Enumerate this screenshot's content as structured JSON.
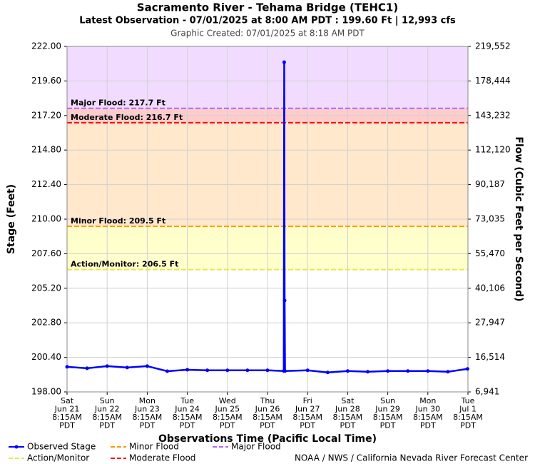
{
  "chart_data": {
    "type": "line",
    "title": "Sacramento River - Tehama Bridge (TEHC1)",
    "subtitle": "Latest Observation - 07/01/2025 at 8:00 AM PDT : 199.60 Ft | 12,993 cfs",
    "created": "Graphic Created: 07/01/2025 at 8:18 AM PDT",
    "xlabel": "Observations Time (Pacific Local Time)",
    "ylabel": "Stage (Feet)",
    "y2label": "Flow (Cubic Feet per Second)",
    "footer": "NOAA / NWS / California Nevada River Forecast Center",
    "grid": true,
    "ylim": [
      198,
      222
    ],
    "yticks": [
      {
        "value": 198,
        "label": "198.00"
      },
      {
        "value": 200.4,
        "label": "200.40"
      },
      {
        "value": 202.8,
        "label": "202.80"
      },
      {
        "value": 205.2,
        "label": "205.20"
      },
      {
        "value": 207.6,
        "label": "207.60"
      },
      {
        "value": 210,
        "label": "210.00"
      },
      {
        "value": 212.4,
        "label": "212.40"
      },
      {
        "value": 214.8,
        "label": "214.80"
      },
      {
        "value": 217.2,
        "label": "217.20"
      },
      {
        "value": 219.6,
        "label": "219.60"
      },
      {
        "value": 222,
        "label": "222.00"
      }
    ],
    "y2ticks": [
      {
        "value": 6941,
        "label": "6,941"
      },
      {
        "value": 16514,
        "label": "16,514"
      },
      {
        "value": 27947,
        "label": "27,947"
      },
      {
        "value": 40106,
        "label": "40,106"
      },
      {
        "value": 55470,
        "label": "55,470"
      },
      {
        "value": 73035,
        "label": "73,035"
      },
      {
        "value": 90187,
        "label": "90,187"
      },
      {
        "value": 112120,
        "label": "112,120"
      },
      {
        "value": 143232,
        "label": "143,232"
      },
      {
        "value": 178444,
        "label": "178,444"
      },
      {
        "value": 219552,
        "label": "219,552"
      }
    ],
    "xlim": [
      "Jun 21 8:15AM",
      "Jul 1 8:15AM"
    ],
    "xticks": [
      {
        "value": "Jun 21 8:15AM",
        "label": [
          "Sat",
          "Jun 21",
          "8:15AM",
          "PDT"
        ]
      },
      {
        "value": "Jun 22 8:15AM",
        "label": [
          "Sun",
          "Jun 22",
          "8:15AM",
          "PDT"
        ]
      },
      {
        "value": "Jun 23 8:15AM",
        "label": [
          "Mon",
          "Jun 23",
          "8:15AM",
          "PDT"
        ]
      },
      {
        "value": "Jun 24 8:15AM",
        "label": [
          "Tue",
          "Jun 24",
          "8:15AM",
          "PDT"
        ]
      },
      {
        "value": "Jun 25 8:15AM",
        "label": [
          "Wed",
          "Jun 25",
          "8:15AM",
          "PDT"
        ]
      },
      {
        "value": "Jun 26 8:15AM",
        "label": [
          "Thu",
          "Jun 26",
          "8:15AM",
          "PDT"
        ]
      },
      {
        "value": "Jun 27 8:15AM",
        "label": [
          "Fri",
          "Jun 27",
          "8:15AM",
          "PDT"
        ]
      },
      {
        "value": "Jun 28 8:15AM",
        "label": [
          "Sat",
          "Jun 28",
          "8:15AM",
          "PDT"
        ]
      },
      {
        "value": "Jun 29 8:15AM",
        "label": [
          "Sun",
          "Jun 29",
          "8:15AM",
          "PDT"
        ]
      },
      {
        "value": "Jun 30 8:15AM",
        "label": [
          "Mon",
          "Jun 30",
          "8:15AM",
          "PDT"
        ]
      },
      {
        "value": "Jul 1 8:15AM",
        "label": [
          "Tue",
          "Jul 1",
          "8:15AM",
          "PDT"
        ]
      }
    ],
    "series": [
      {
        "name": "Observed Stage",
        "color": "#0000ff",
        "x": [
          "Jun 21 8:15AM",
          "Jun 21 8:15PM",
          "Jun 22 8:15AM",
          "Jun 22 8:15PM",
          "Jun 23 8:15AM",
          "Jun 23 8:15PM",
          "Jun 24 8:15AM",
          "Jun 24 8:15PM",
          "Jun 25 8:15AM",
          "Jun 25 8:15PM",
          "Jun 26 8:15AM",
          "Jun 26 6:00PM",
          "Jun 26 6:15PM",
          "Jun 26 6:30PM",
          "Jun 26 6:45PM",
          "Jun 27 8:15AM",
          "Jun 27 8:15PM",
          "Jun 28 8:15AM",
          "Jun 28 8:15PM",
          "Jun 29 8:15AM",
          "Jun 29 8:15PM",
          "Jun 30 8:15AM",
          "Jun 30 8:15PM",
          "Jul 1 8:00AM"
        ],
        "values": [
          199.74,
          199.64,
          199.79,
          199.69,
          199.79,
          199.44,
          199.54,
          199.5,
          199.5,
          199.5,
          199.5,
          199.45,
          220.9,
          204.35,
          199.45,
          199.5,
          199.35,
          199.45,
          199.4,
          199.45,
          199.45,
          199.45,
          199.4,
          199.6
        ]
      }
    ],
    "thresholds": [
      {
        "name": "Major Flood",
        "value": 217.7,
        "label": "Major Flood: 217.7 Ft",
        "color": "#b266ff",
        "band_color": "#f1dcff"
      },
      {
        "name": "Moderate Flood",
        "value": 216.7,
        "label": "Moderate Flood: 216.7 Ft",
        "color": "#ff0000",
        "band_color": "#ffcccc"
      },
      {
        "name": "Minor Flood",
        "value": 209.5,
        "label": "Minor Flood: 209.5 Ft",
        "color": "#ff9900",
        "band_color": "#ffe8cc"
      },
      {
        "name": "Action/Monitor",
        "value": 206.5,
        "label": "Action/Monitor: 206.5 Ft",
        "color": "#e6e64d",
        "band_color": "#ffffcc"
      }
    ]
  }
}
